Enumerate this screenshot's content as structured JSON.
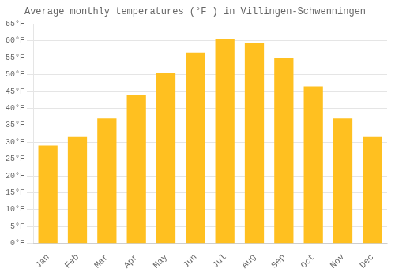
{
  "chart_data": {
    "type": "bar",
    "title": "Average monthly temperatures (°F ) in Villingen-Schwenningen",
    "categories": [
      "Jan",
      "Feb",
      "Mar",
      "Apr",
      "May",
      "Jun",
      "Jul",
      "Aug",
      "Sep",
      "Oct",
      "Nov",
      "Dec"
    ],
    "values": [
      29,
      31.5,
      37,
      44,
      50.5,
      56.5,
      60.5,
      59.5,
      55,
      46.5,
      37,
      31.5
    ],
    "color": "#FFC020",
    "ylim": [
      0,
      65
    ],
    "yticks": [
      {
        "value": 0,
        "label": "0°F"
      },
      {
        "value": 5,
        "label": "5°F"
      },
      {
        "value": 10,
        "label": "10°F"
      },
      {
        "value": 15,
        "label": "15°F"
      },
      {
        "value": 20,
        "label": "20°F"
      },
      {
        "value": 25,
        "label": "25°F"
      },
      {
        "value": 30,
        "label": "30°F"
      },
      {
        "value": 35,
        "label": "35°F"
      },
      {
        "value": 40,
        "label": "40°F"
      },
      {
        "value": 45,
        "label": "45°F"
      },
      {
        "value": 50,
        "label": "50°F"
      },
      {
        "value": 55,
        "label": "55°F"
      },
      {
        "value": 60,
        "label": "60°F"
      },
      {
        "value": 65,
        "label": "65°F"
      }
    ],
    "grid": true
  }
}
